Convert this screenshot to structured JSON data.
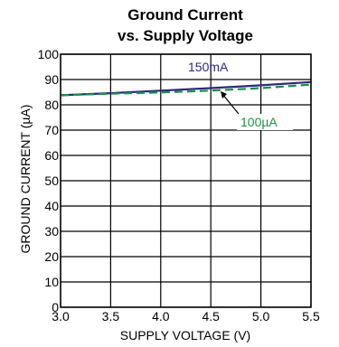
{
  "chart_data": {
    "type": "line",
    "title": [
      "Ground Current",
      "vs. Supply Voltage"
    ],
    "xlabel": "SUPPLY VOLTAGE (V)",
    "ylabel": "GROUND CURRENT (µA)",
    "xlim": [
      3.0,
      5.5
    ],
    "ylim": [
      0,
      100
    ],
    "xticks": [
      "3.0",
      "3.5",
      "4.0",
      "4.5",
      "5.0",
      "5.5"
    ],
    "yticks": [
      "0",
      "10",
      "20",
      "30",
      "40",
      "50",
      "60",
      "70",
      "80",
      "90",
      "100"
    ],
    "grid": true,
    "series": [
      {
        "name": "150mA",
        "color": "#2b2a7a",
        "dash": false,
        "x": [
          3.0,
          3.5,
          4.0,
          4.5,
          5.0,
          5.5
        ],
        "y": [
          83.8,
          84.6,
          85.6,
          86.6,
          87.7,
          89.0
        ]
      },
      {
        "name": "100µA",
        "color": "#1f8f4a",
        "dash": true,
        "x": [
          3.0,
          3.5,
          4.0,
          4.5,
          5.0,
          5.5
        ],
        "y": [
          83.8,
          84.4,
          84.9,
          85.6,
          86.6,
          88.0
        ]
      }
    ]
  }
}
